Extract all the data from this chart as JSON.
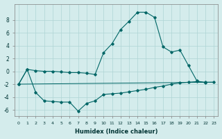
{
  "xlabel": "Humidex (Indice chaleur)",
  "ylabel": "",
  "xlim": [
    -0.5,
    23.5
  ],
  "ylim": [
    -7,
    10.5
  ],
  "yticks": [
    -6,
    -4,
    -2,
    0,
    2,
    4,
    6,
    8
  ],
  "xticks": [
    0,
    1,
    2,
    3,
    4,
    5,
    6,
    7,
    8,
    9,
    10,
    11,
    12,
    13,
    14,
    15,
    16,
    17,
    18,
    19,
    20,
    21,
    22,
    23
  ],
  "bg_color": "#d4ecec",
  "grid_color": "#aed4d4",
  "line_color": "#006666",
  "line1_x": [
    0,
    1,
    2,
    3,
    4,
    5,
    6,
    7,
    8,
    9,
    10,
    11,
    12,
    13,
    14,
    15,
    16,
    17,
    18,
    19,
    20,
    21,
    22,
    23
  ],
  "line1_y": [
    -2.0,
    0.3,
    0.1,
    0.0,
    0.0,
    -0.1,
    -0.2,
    -0.2,
    -0.3,
    -0.5,
    2.9,
    4.3,
    6.5,
    7.8,
    9.2,
    9.2,
    8.4,
    3.8,
    3.0,
    3.3,
    0.9,
    -1.5,
    -1.8,
    null
  ],
  "line2_x": [
    0,
    1,
    2,
    3,
    4,
    5,
    6,
    7,
    8,
    9,
    10,
    11,
    12,
    13,
    14,
    15,
    16,
    17,
    18,
    19,
    20,
    21,
    22,
    23
  ],
  "line2_y": [
    -2.0,
    0.3,
    -3.3,
    -4.6,
    -4.7,
    -4.8,
    -4.8,
    -6.2,
    -5.0,
    -4.6,
    -3.6,
    -3.5,
    -3.4,
    -3.2,
    -3.0,
    -2.8,
    -2.5,
    -2.3,
    -2.0,
    -1.8,
    -1.7,
    -1.6,
    -1.7,
    -1.7
  ],
  "line3_x": [
    0,
    23
  ],
  "line3_y": [
    -2.0,
    -1.7
  ]
}
